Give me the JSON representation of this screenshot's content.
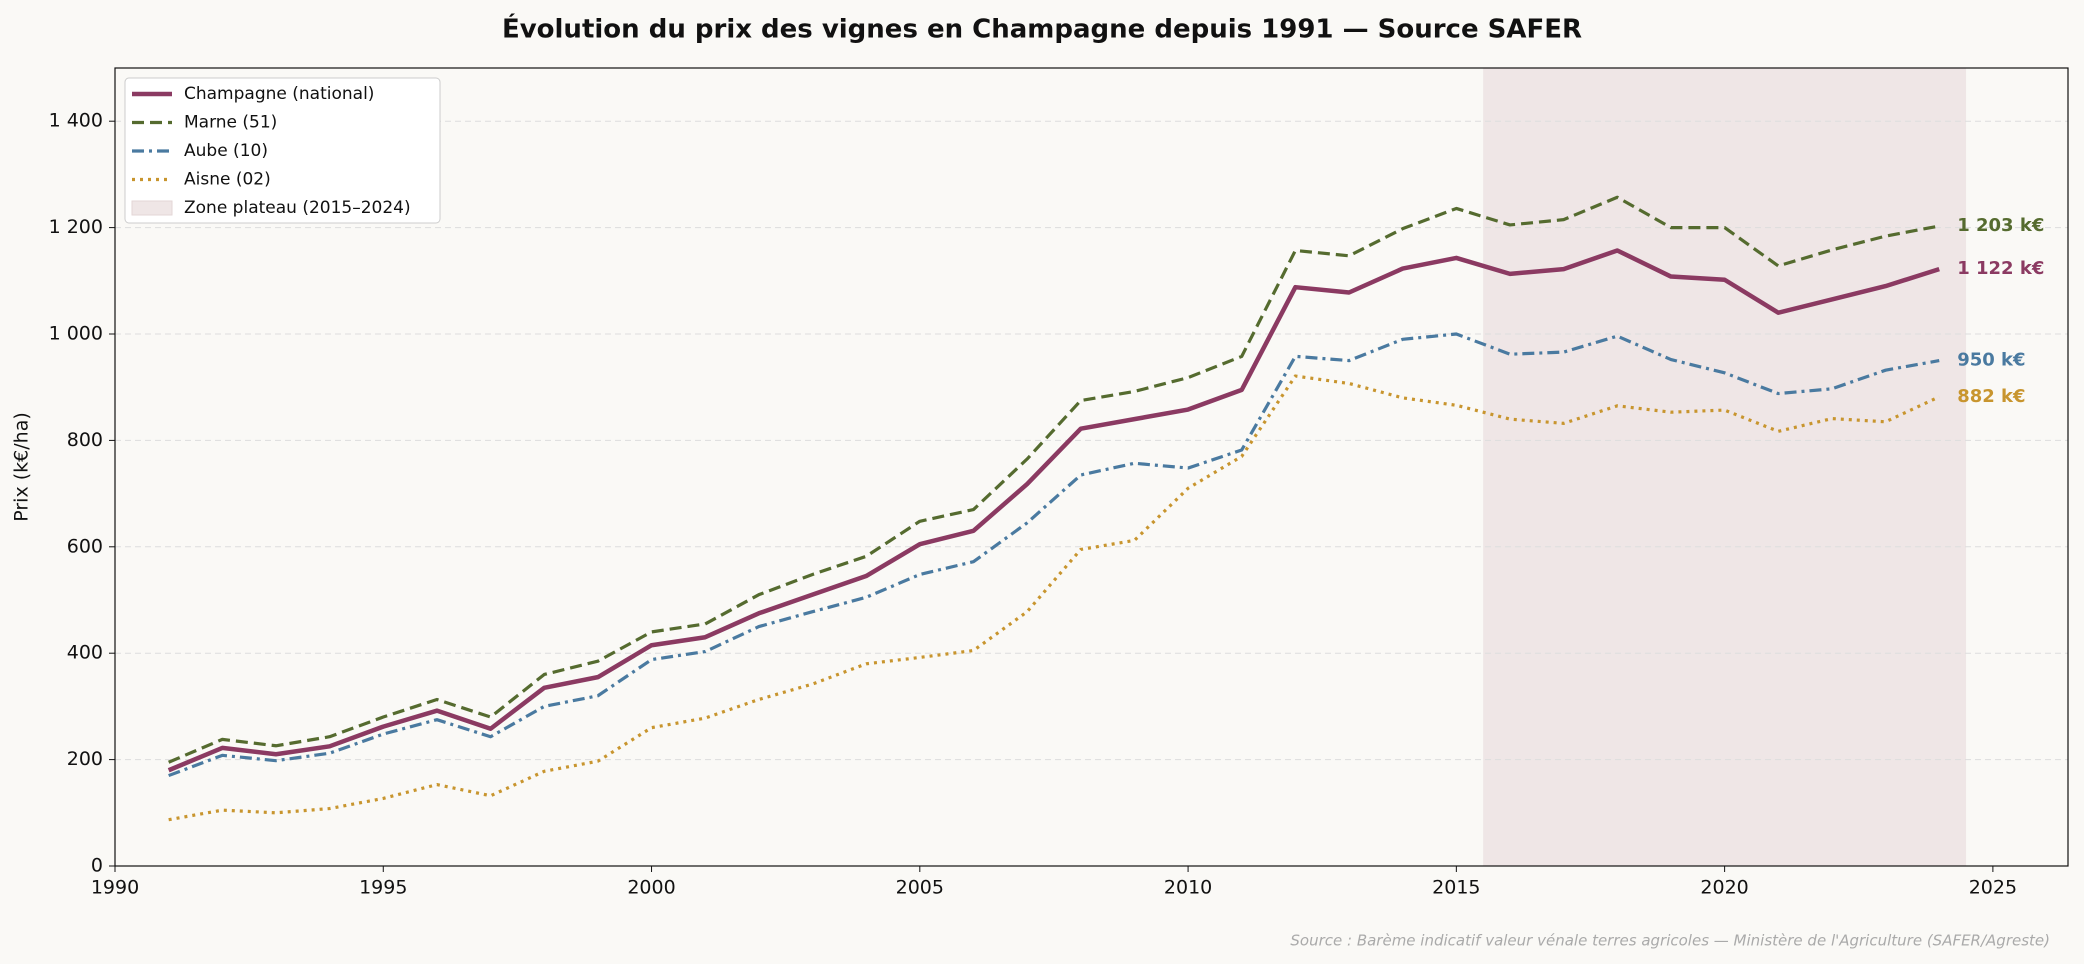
{
  "chart_data": {
    "type": "line",
    "title": "Évolution du prix des vignes en Champagne depuis 1991 — Source SAFER",
    "y_label": "Prix (k€/ha)",
    "source": "Source : Barème indicatif valeur vénale terres agricoles — Ministère de l'Agriculture (SAFER/Agreste)",
    "x": [
      1991,
      1992,
      1993,
      1994,
      1995,
      1996,
      1997,
      1998,
      1999,
      2000,
      2001,
      2002,
      2003,
      2004,
      2005,
      2006,
      2007,
      2008,
      2009,
      2010,
      2011,
      2012,
      2013,
      2014,
      2015,
      2016,
      2017,
      2018,
      2019,
      2020,
      2021,
      2022,
      2023,
      2024
    ],
    "series": [
      {
        "name": "Champagne (national)",
        "color": "#8b3a62",
        "linestyle": "solid",
        "end_label": "1 122 k€",
        "values": [
          180,
          222,
          210,
          225,
          262,
          292,
          258,
          335,
          355,
          415,
          430,
          475,
          510,
          545,
          605,
          630,
          718,
          822,
          840,
          858,
          895,
          1088,
          1078,
          1123,
          1143,
          1113,
          1122,
          1157,
          1108,
          1102,
          1040,
          1065,
          1090,
          1122
        ]
      },
      {
        "name": "Marne (51)",
        "color": "#556b2f",
        "linestyle": "dashed",
        "end_label": "1 203 k€",
        "values": [
          195,
          238,
          226,
          243,
          280,
          313,
          280,
          360,
          385,
          440,
          455,
          510,
          548,
          582,
          648,
          670,
          765,
          875,
          892,
          918,
          958,
          1157,
          1147,
          1198,
          1236,
          1205,
          1215,
          1257,
          1200,
          1200,
          1128,
          1158,
          1184,
          1203
        ]
      },
      {
        "name": "Aube (10)",
        "color": "#4a7aa0",
        "linestyle": "dashdot",
        "end_label": "950 k€",
        "values": [
          170,
          208,
          198,
          212,
          248,
          275,
          243,
          300,
          320,
          388,
          403,
          450,
          478,
          505,
          548,
          572,
          645,
          735,
          757,
          748,
          782,
          958,
          950,
          990,
          1000,
          962,
          966,
          996,
          952,
          927,
          888,
          897,
          932,
          950
        ]
      },
      {
        "name": "Aisne (02)",
        "color": "#c8952e",
        "linestyle": "dotted",
        "end_label": "882 k€",
        "values": [
          87,
          105,
          100,
          108,
          127,
          153,
          132,
          178,
          197,
          260,
          278,
          313,
          342,
          380,
          392,
          405,
          478,
          595,
          612,
          710,
          770,
          921,
          907,
          880,
          866,
          840,
          832,
          865,
          853,
          857,
          817,
          841,
          835,
          882
        ]
      }
    ],
    "shade": {
      "label": "Zone plateau (2015–2024)",
      "x": [
        2015.5,
        2024.5
      ],
      "color": "#efe6e6"
    },
    "xlim": [
      1990,
      2026.4
    ],
    "xticks": [
      1990,
      1995,
      2000,
      2005,
      2010,
      2015,
      2020,
      2025
    ],
    "ylim": [
      0,
      1500
    ],
    "yticks": [
      0,
      200,
      400,
      600,
      800,
      {
        "value": 1000,
        "label": "1 000"
      },
      {
        "value": 1200,
        "label": "1 200"
      },
      {
        "value": 1400,
        "label": "1 400"
      }
    ],
    "grid": true,
    "legend": "upper left"
  }
}
